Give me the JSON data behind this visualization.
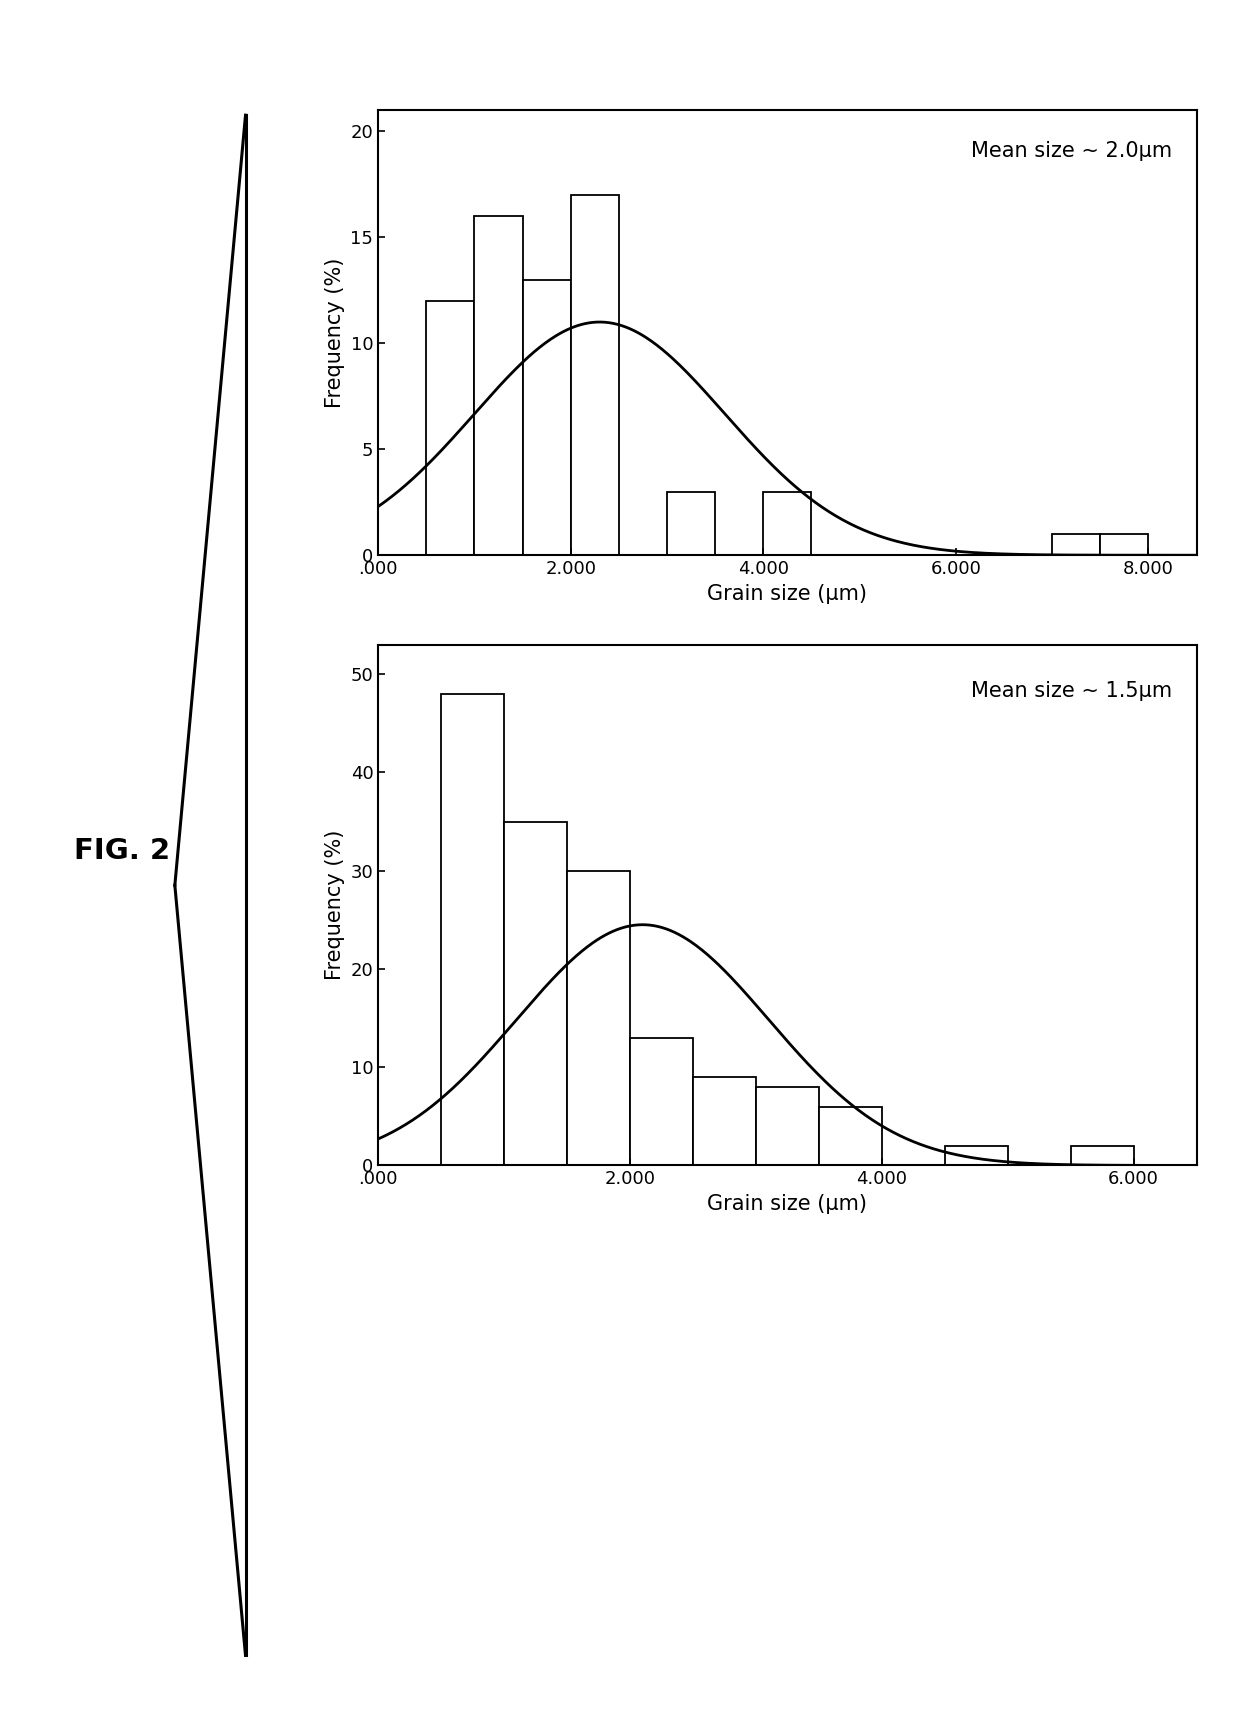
{
  "chart1": {
    "title": "Mean size ~ 2.0μm",
    "xlabel": "Grain size (μm)",
    "ylabel": "Frequency (%)",
    "bin_left_edges": [
      0.5,
      1.0,
      1.5,
      2.0,
      2.5,
      3.0,
      3.5,
      4.0,
      4.5,
      5.0,
      5.5,
      6.0,
      7.0,
      7.5
    ],
    "bar_heights": [
      12,
      16,
      13,
      17,
      0,
      3,
      0,
      3,
      0,
      0,
      0,
      0,
      1,
      1
    ],
    "bar_width": 0.5,
    "ylim": [
      0,
      21
    ],
    "yticks": [
      0,
      5,
      10,
      15,
      20
    ],
    "xlim": [
      0,
      8.5
    ],
    "xticks": [
      0,
      2.0,
      4.0,
      6.0,
      8.0
    ],
    "xticklabels": [
      ".000",
      "2.000",
      "4.000",
      "6.000",
      "8.000"
    ],
    "curve_mu": 2.3,
    "curve_sigma": 1.3,
    "curve_amplitude": 11.0
  },
  "chart2": {
    "title": "Mean size ~ 1.5μm",
    "xlabel": "Grain size (μm)",
    "ylabel": "Frequency (%)",
    "bin_left_edges": [
      0.5,
      1.0,
      1.5,
      2.0,
      2.5,
      3.0,
      3.5,
      4.0,
      4.5,
      5.5
    ],
    "bar_heights": [
      48,
      35,
      30,
      13,
      9,
      8,
      6,
      0,
      2,
      2
    ],
    "bar_width": 0.5,
    "ylim": [
      0,
      53
    ],
    "yticks": [
      0,
      10,
      20,
      30,
      40,
      50
    ],
    "xlim": [
      0,
      6.5
    ],
    "xticks": [
      0,
      2.0,
      4.0,
      6.0
    ],
    "xticklabels": [
      ".000",
      "2.000",
      "4.000",
      "6.000"
    ],
    "curve_mu": 2.1,
    "curve_sigma": 1.0,
    "curve_amplitude": 24.5
  },
  "fig_label": "FIG. 2",
  "background_color": "#ffffff",
  "bar_color": "#ffffff",
  "bar_edge_color": "#000000",
  "curve_color": "#000000"
}
